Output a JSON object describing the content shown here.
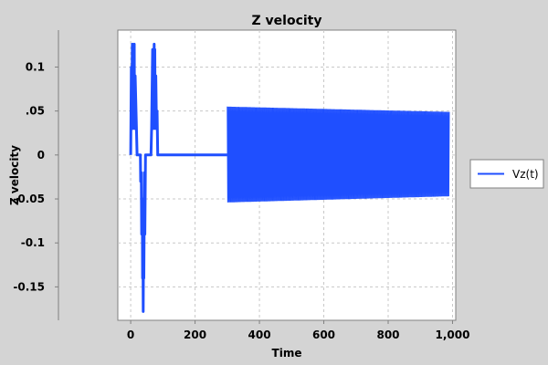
{
  "chart_data": {
    "type": "line",
    "title": "Z velocity",
    "xlabel": "Time",
    "ylabel": "Z velocity",
    "xlim": [
      -40,
      1010
    ],
    "ylim": [
      -0.188,
      0.142
    ],
    "x_ticks": [
      0,
      200,
      400,
      600,
      800,
      1000
    ],
    "x_tick_labels": [
      "0",
      "200",
      "400",
      "600",
      "800",
      "1,000"
    ],
    "y_ticks": [
      0.1,
      0.05,
      0,
      -0.05,
      -0.1,
      -0.15
    ],
    "y_tick_labels": [
      "0.1",
      ".05",
      "0",
      "-0.05",
      "-0.1",
      "-0.15"
    ],
    "grid": true,
    "legend": "right",
    "series": [
      {
        "name": "Vz(t)",
        "color": "#1f4fff",
        "x": [
          0,
          2,
          3,
          5,
          6,
          8,
          9,
          11,
          12,
          14,
          20,
          30,
          31,
          33,
          34,
          36,
          37,
          38,
          39,
          40,
          41,
          43,
          44,
          46,
          50,
          63,
          65,
          68,
          70,
          73,
          74,
          75,
          76,
          78,
          80,
          82,
          84,
          88,
          300
        ],
        "y": [
          0,
          0.1,
          0.03,
          0.126,
          0.03,
          0.09,
          0.036,
          0.126,
          0.03,
          0.09,
          0,
          0,
          -0.03,
          -0.02,
          -0.09,
          -0.05,
          -0.14,
          -0.1,
          -0.178,
          -0.09,
          -0.14,
          -0.02,
          -0.09,
          0,
          0,
          0,
          0.03,
          0.12,
          0.03,
          0.126,
          0.04,
          0.12,
          0.03,
          0.09,
          0.035,
          0.05,
          0,
          0,
          0
        ]
      }
    ],
    "oscillation_band": {
      "x_start": 300,
      "x_end": 990,
      "y_upper_start": 0.055,
      "y_upper_end": 0.049,
      "y_lower_start": -0.054,
      "y_lower_end": -0.047,
      "period": 3
    }
  }
}
